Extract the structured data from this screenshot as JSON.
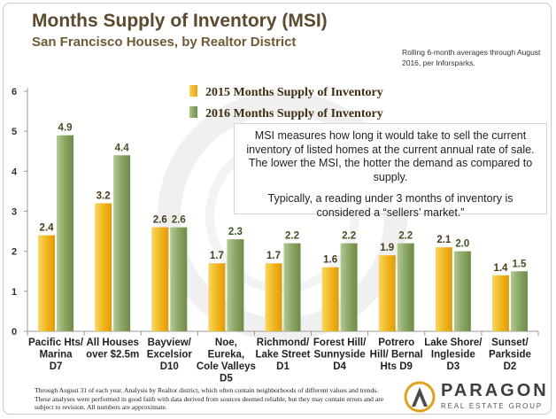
{
  "title": "Months Supply of Inventory (MSI)",
  "subtitle": "San Francisco Houses, by Realtor District",
  "note": "Rolling 6-month averages through August 2016, per Inforsparks.",
  "callout": {
    "paragraph1": "MSI measures how long it would take to sell the current inventory of listed homes at the current annual rate of sale. The lower the MSI, the hotter the demand as compared to supply.",
    "paragraph2": "Typically, a reading under 3 months of inventory is considered a “sellers’ market.”"
  },
  "footnote": "Through August 31 of each year. Analysis by Realtor district, which often contain neighborhoods of different values and trends. These analyses were performed in good faith with data derived from sources deemed reliable, but they may contain errors and are subject to revision. All numbers are approximate.",
  "logo": {
    "name": "PARAGON",
    "tagline": "REAL ESTATE GROUP"
  },
  "colors": {
    "series_2015": "#f2b91f",
    "series_2016": "#8faa6a",
    "title": "#5c4a2e",
    "label_2016": "#3e5420"
  },
  "chart_data": {
    "type": "bar",
    "title": "Months Supply of Inventory (MSI)",
    "xlabel": "",
    "ylabel": "",
    "ylim": [
      0,
      6
    ],
    "yticks": [
      0,
      1,
      2,
      3,
      4,
      5,
      6
    ],
    "categories": [
      [
        "Pacific Hts/",
        "Marina",
        "D7"
      ],
      [
        "All Houses",
        "over $2.5m"
      ],
      [
        "Bayview/",
        "Excelsior",
        "D10"
      ],
      [
        "Noe,",
        "Eureka,",
        "Cole Valleys",
        "D5"
      ],
      [
        "Richmond/",
        "Lake Street",
        "D1"
      ],
      [
        "Forest Hill/",
        "Sunnyside",
        "D4"
      ],
      [
        "Potrero",
        "Hill/ Bernal",
        "Hts  D9"
      ],
      [
        "Lake Shore/",
        "Ingleside",
        "D3"
      ],
      [
        "Sunset/",
        "Parkside",
        "D2"
      ]
    ],
    "series": [
      {
        "name": "2015 Months Supply of Inventory",
        "values": [
          2.4,
          3.2,
          2.6,
          1.7,
          1.7,
          1.6,
          1.9,
          2.1,
          1.4
        ]
      },
      {
        "name": "2016 Months Supply of Inventory",
        "values": [
          4.9,
          4.4,
          2.6,
          2.3,
          2.2,
          2.2,
          2.2,
          2.0,
          1.5
        ]
      }
    ],
    "legend": "top-left"
  }
}
